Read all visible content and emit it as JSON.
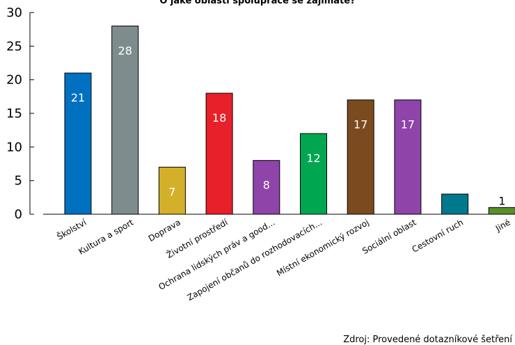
{
  "source": "Zdroj: Provedené dotazníkové šetření",
  "chart_data": {
    "type": "bar",
    "title": "O jaké oblasti spolupráce se zajímate?",
    "xlabel": "",
    "ylabel": "",
    "ylim": [
      0,
      30
    ],
    "yticks": [
      0,
      5,
      10,
      15,
      20,
      25,
      30
    ],
    "grid": false,
    "categories": [
      "Školství",
      "Kultura a sport",
      "Doprava",
      "Životní prostředí",
      "Ochrana lidských práv a good...",
      "Zapojení občanů do rozhodovacích...",
      "Místní ekonomický rozvoj",
      "Sociální oblast",
      "Cestovní ruch",
      "Jiné"
    ],
    "values": [
      21,
      28,
      7,
      18,
      8,
      12,
      17,
      17,
      3,
      1
    ],
    "colors": [
      "#0070c0",
      "#7f8c8d",
      "#d4b02a",
      "#e8202a",
      "#8e44a9",
      "#00a650",
      "#7b4a1e",
      "#8e44a9",
      "#00798c",
      "#5a8f29"
    ],
    "label_colors": [
      "#ffffff",
      "#ffffff",
      "#ffffff",
      "#ffffff",
      "#ffffff",
      "#ffffff",
      "#ffffff",
      "#ffffff",
      "#ffffff",
      "#000000"
    ]
  }
}
